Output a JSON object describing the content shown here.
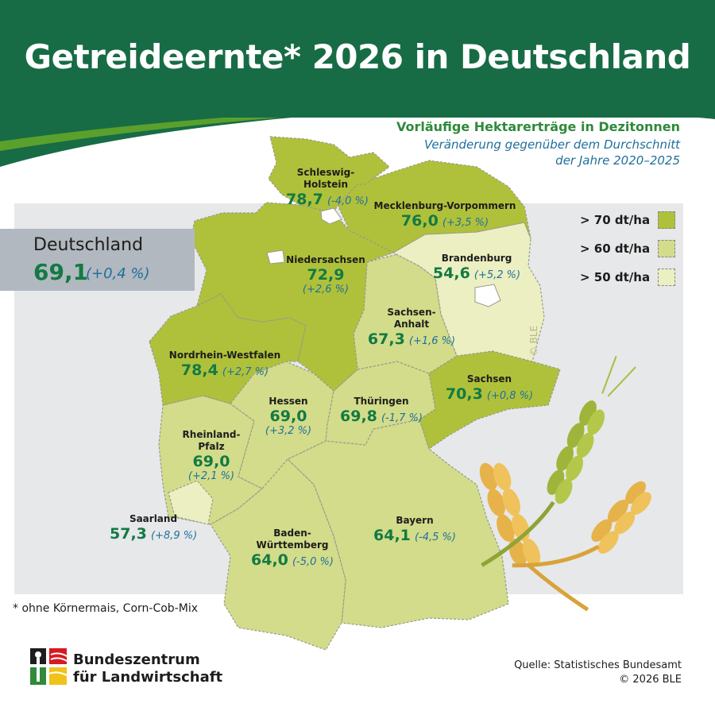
{
  "title": "Getreideernte* 2026 in Deutschland",
  "subtitle": "Vorläufige Hektarerträge in Dezitonnen",
  "subtitle2_line1": "Veränderung gegenüber dem Durchschnitt",
  "subtitle2_line2": "der Jahre 2020–2025",
  "national": {
    "name": "Deutschland",
    "value": "69,1",
    "change": "(+0,4 %)"
  },
  "legend": [
    {
      "label": "> 70 dt/ha",
      "color": "#afc13a"
    },
    {
      "label": "> 60 dt/ha",
      "color": "#d2dc8a"
    },
    {
      "label": "> 50 dt/ha",
      "color": "#ebefc2"
    }
  ],
  "states": {
    "sh": {
      "name": "Schleswig-",
      "name2": "Holstein",
      "value": "78,7",
      "change": "(-4,0 %)",
      "color": "#afc13a"
    },
    "mv": {
      "name": "Mecklenburg-Vorpommern",
      "value": "76,0",
      "change": "(+3,5 %)",
      "color": "#afc13a"
    },
    "ni": {
      "name": "Niedersachsen",
      "value": "72,9",
      "change": "(+2,6 %)",
      "color": "#afc13a"
    },
    "bb": {
      "name": "Brandenburg",
      "value": "54,6",
      "change": "(+5,2 %)",
      "color": "#ebefc2"
    },
    "st": {
      "name": "Sachsen-",
      "name2": "Anhalt",
      "value": "67,3",
      "change": "(+1,6 %)",
      "color": "#d2dc8a"
    },
    "nw": {
      "name": "Nordrhein-Westfalen",
      "value": "78,4",
      "change": "(+2,7 %)",
      "color": "#afc13a"
    },
    "sn": {
      "name": "Sachsen",
      "value": "70,3",
      "change": "(+0,8 %)",
      "color": "#afc13a"
    },
    "he": {
      "name": "Hessen",
      "value": "69,0",
      "change": "(+3,2 %)",
      "color": "#d2dc8a"
    },
    "th": {
      "name": "Thüringen",
      "value": "69,8",
      "change": "(-1,7 %)",
      "color": "#d2dc8a"
    },
    "rp": {
      "name": "Rheinland-",
      "name2": "Pfalz",
      "value": "69,0",
      "change": "(+2,1 %)",
      "color": "#d2dc8a"
    },
    "sl": {
      "name": "Saarland",
      "value": "57,3",
      "change": "(+8,9 %)",
      "color": "#ebefc2"
    },
    "bw": {
      "name": "Baden-",
      "name2": "Württemberg",
      "value": "64,0",
      "change": "(-5,0 %)",
      "color": "#d2dc8a"
    },
    "by": {
      "name": "Bayern",
      "value": "64,1",
      "change": "(-4,5 %)",
      "color": "#d2dc8a"
    }
  },
  "watermark": "© BLE",
  "footnote": "*  ohne Körnermais, Corn-Cob-Mix",
  "logo": {
    "line1": "Bundeszentrum",
    "line2": "für Landwirtschaft"
  },
  "source": "Quelle: Statistisches Bundesamt",
  "copyright": "© 2026 BLE"
}
